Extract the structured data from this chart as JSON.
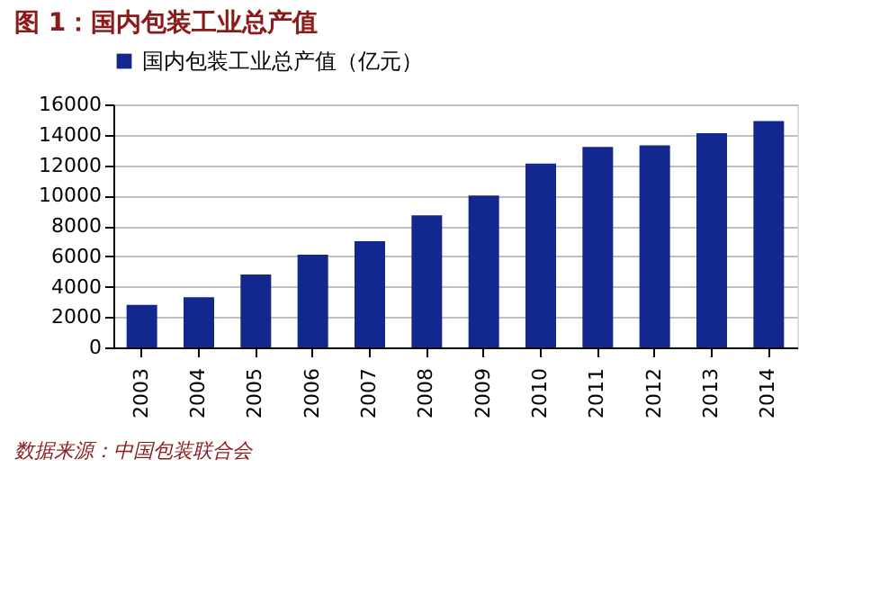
{
  "chart_data": {
    "type": "bar",
    "title": "图 1：国内包装工业总产值",
    "categories": [
      "2003",
      "2004",
      "2005",
      "2006",
      "2007",
      "2008",
      "2009",
      "2010",
      "2011",
      "2012",
      "2013",
      "2014"
    ],
    "series": [
      {
        "name": "国内包装工业总产值（亿元）",
        "color": "#13288f",
        "values": [
          2800,
          3300,
          4800,
          6100,
          7000,
          8700,
          10000,
          12100,
          13200,
          13300,
          14100,
          14900
        ]
      }
    ],
    "ylim": [
      0,
      16000
    ],
    "yticks": [
      0,
      2000,
      4000,
      6000,
      8000,
      10000,
      12000,
      14000,
      16000
    ],
    "grid": "y",
    "legend": "top",
    "annotations": [
      "数据来源：中国包装联合会"
    ]
  }
}
